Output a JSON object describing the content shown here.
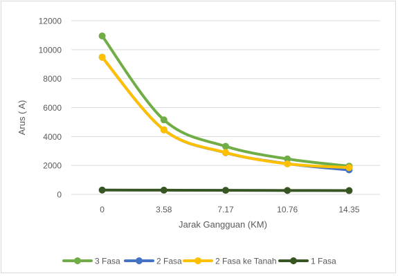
{
  "chart_data": {
    "type": "line",
    "title": "",
    "xlabel": "Jarak Gangguan (KM)",
    "ylabel": "Arus ( A)",
    "categories": [
      "0",
      "3.58",
      "7.17",
      "10.76",
      "14.35"
    ],
    "ylim": [
      0,
      12000
    ],
    "yticks": [
      0,
      2000,
      4000,
      6000,
      8000,
      10000,
      12000
    ],
    "grid": true,
    "smooth": true,
    "legend_position": "bottom",
    "series": [
      {
        "name": "3 Fasa",
        "color": "#70ad47",
        "values": [
          10950,
          5150,
          3320,
          2450,
          1950
        ]
      },
      {
        "name": "2 Fasa",
        "color": "#4472c4",
        "values": [
          9480,
          4460,
          2880,
          2120,
          1690
        ]
      },
      {
        "name": "2 Fasa ke Tanah",
        "color": "#ffc000",
        "values": [
          9480,
          4460,
          2890,
          2110,
          1850
        ]
      },
      {
        "name": "1 Fasa",
        "color": "#375623",
        "values": [
          300,
          290,
          280,
          270,
          260
        ]
      }
    ]
  }
}
